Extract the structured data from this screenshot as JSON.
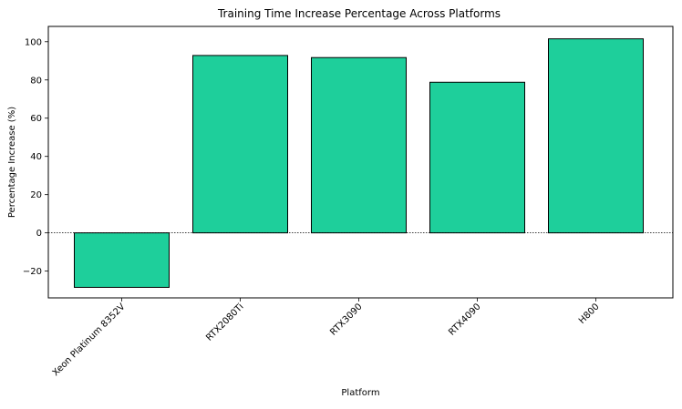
{
  "chart_data": {
    "type": "bar",
    "title": "Training Time Increase Percentage Across Platforms",
    "xlabel": "Platform",
    "ylabel": "Percentage Increase (%)",
    "categories": [
      "Xeon Platinum 8352V",
      "RTX2080Ti",
      "RTX3090",
      "RTX4090",
      "H800"
    ],
    "values": [
      -28.5,
      92.8,
      91.7,
      78.8,
      101.5
    ],
    "ylim": [
      -34,
      108
    ],
    "yticks": [
      -20,
      0,
      20,
      40,
      60,
      80,
      100
    ],
    "ytick_labels": [
      "−20",
      "0",
      "20",
      "40",
      "60",
      "80",
      "100"
    ],
    "bar_color": "#1ecf9b",
    "edge_color": "#000000",
    "zero_line": "dotted",
    "grid": false,
    "legend": "none"
  }
}
